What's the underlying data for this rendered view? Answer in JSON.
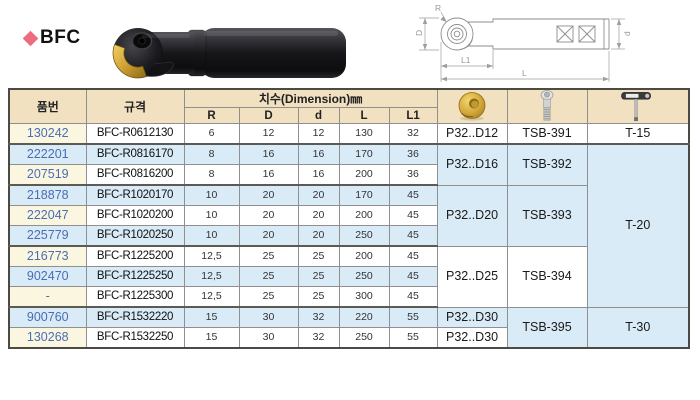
{
  "title": {
    "label": "BFC"
  },
  "colors": {
    "header_bg": "#f1e1c0",
    "partno_col_bg": "#fbf6e0",
    "row_alt_bg": "#d9ebf7",
    "partno_text": "#4a6db4",
    "diamond": "#ec6d80",
    "insert_gold": "#d3a83a"
  },
  "icons": {
    "insert": "ball-insert-icon",
    "screw": "clamp-screw-icon",
    "wrench": "torx-wrench-icon"
  },
  "drawing": {
    "labels": {
      "r": "R",
      "big_d": "D",
      "small_d": "d",
      "l1": "L1",
      "l": "L"
    }
  },
  "table": {
    "headers": {
      "part_no": "품번",
      "spec": "규격",
      "dimension": "치수(Dimension)㎜",
      "dim_cols": [
        "R",
        "D",
        "d",
        "L",
        "L1"
      ]
    },
    "rows": [
      {
        "part_no": "130242",
        "spec": "BFC-R0612130",
        "dims": [
          "6",
          "12",
          "12",
          "130",
          "32"
        ],
        "insert": {
          "label": "P32..D12",
          "span": 1
        },
        "screw": {
          "label": "TSB-391",
          "span": 1
        },
        "wrench": {
          "label": "T-15",
          "span": 1
        },
        "group_end": true
      },
      {
        "part_no": "222201",
        "spec": "BFC-R0816170",
        "dims": [
          "8",
          "16",
          "16",
          "170",
          "36"
        ],
        "insert": {
          "label": "P32..D16",
          "span": 2
        },
        "screw": {
          "label": "TSB-392",
          "span": 2
        },
        "wrench": {
          "label": "T-20",
          "span": 8
        }
      },
      {
        "part_no": "207519",
        "spec": "BFC-R0816200",
        "dims": [
          "8",
          "16",
          "16",
          "200",
          "36"
        ],
        "group_end": true
      },
      {
        "part_no": "218878",
        "spec": "BFC-R1020170",
        "dims": [
          "10",
          "20",
          "20",
          "170",
          "45"
        ],
        "insert": {
          "label": "P32..D20",
          "span": 3
        },
        "screw": {
          "label": "TSB-393",
          "span": 3
        }
      },
      {
        "part_no": "222047",
        "spec": "BFC-R1020200",
        "dims": [
          "10",
          "20",
          "20",
          "200",
          "45"
        ]
      },
      {
        "part_no": "225779",
        "spec": "BFC-R1020250",
        "dims": [
          "10",
          "20",
          "20",
          "250",
          "45"
        ],
        "group_end": true
      },
      {
        "part_no": "216773",
        "spec": "BFC-R1225200",
        "dims": [
          "12,5",
          "25",
          "25",
          "200",
          "45"
        ],
        "insert": {
          "label": "P32..D25",
          "span": 3
        },
        "screw": {
          "label": "TSB-394",
          "span": 3
        }
      },
      {
        "part_no": "902470",
        "spec": "BFC-R1225250",
        "dims": [
          "12,5",
          "25",
          "25",
          "250",
          "45"
        ]
      },
      {
        "part_no": "-",
        "spec": "BFC-R1225300",
        "dims": [
          "12,5",
          "25",
          "25",
          "300",
          "45"
        ],
        "group_end": true
      },
      {
        "part_no": "900760",
        "spec": "BFC-R1532220",
        "dims": [
          "15",
          "30",
          "32",
          "220",
          "55"
        ],
        "insert": {
          "label": "P32..D30",
          "span": 1
        },
        "screw": {
          "label": "TSB-395",
          "span": 2
        },
        "wrench": {
          "label": "T-30",
          "span": 2
        }
      },
      {
        "part_no": "130268",
        "spec": "BFC-R1532250",
        "dims": [
          "15",
          "30",
          "32",
          "250",
          "55"
        ],
        "insert": {
          "label": "P32..D30",
          "span": 1
        }
      }
    ]
  }
}
